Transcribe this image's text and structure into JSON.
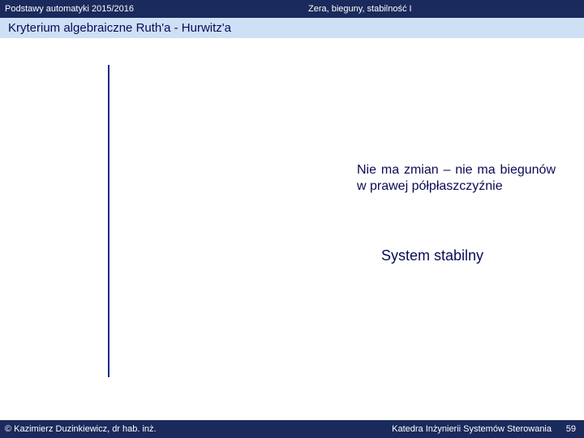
{
  "header": {
    "left": "Podstawy automatyki 2015/2016",
    "right": "Zera, bieguny, stabilność  I"
  },
  "title": "Kryterium algebraiczne Ruth'a - Hurwitz'a",
  "body": {
    "paragraph": "Nie ma zmian – nie ma biegunów w prawej półpłaszczyźnie",
    "statement": "System stabilny"
  },
  "footer": {
    "left": "© Kazimierz Duzinkiewicz, dr hab. inż.",
    "right": "Katedra Inżynierii Systemów Sterowania",
    "page": "59"
  },
  "colors": {
    "bar_bg": "#1a2a5c",
    "title_bg": "#cde0f5",
    "text_dark": "#0a0a55",
    "line": "#1a2a8c"
  }
}
